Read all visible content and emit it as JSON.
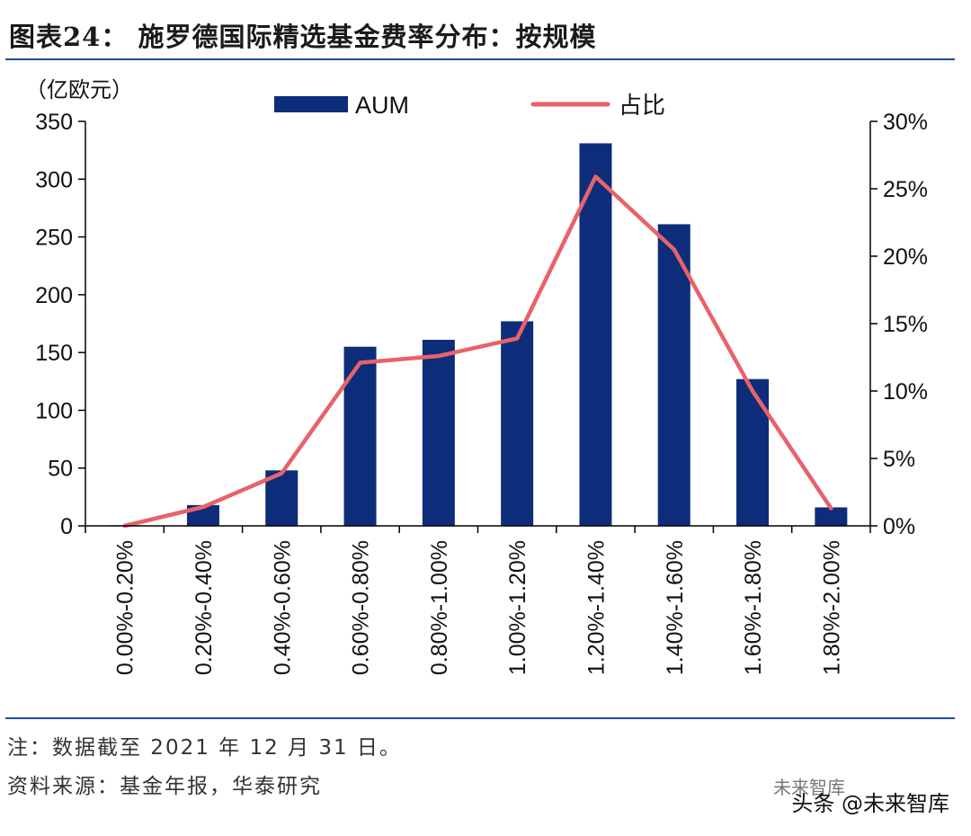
{
  "title": "图表24： 施罗德国际精选基金费率分布：按规模",
  "notes": {
    "note": "注：数据截至 2021 年 12 月 31 日。",
    "source": "资料来源：基金年报，华泰研究"
  },
  "watermark": {
    "text": "头条 @未来智库",
    "logo": "未来智库"
  },
  "colors": {
    "bar": "#0d2d7a",
    "line": "#e8626a",
    "rule": "#1f4e9c"
  },
  "chart_data": {
    "type": "bar",
    "title": "施罗德国际精选基金费率分布：按规模",
    "categories": [
      "0.00%-0.20%",
      "0.20%-0.40%",
      "0.40%-0.60%",
      "0.60%-0.80%",
      "0.80%-1.00%",
      "1.00%-1.20%",
      "1.20%-1.40%",
      "1.40%-1.60%",
      "1.60%-1.80%",
      "1.80%-2.00%"
    ],
    "series": [
      {
        "name": "AUM",
        "type": "bar",
        "axis": "left",
        "values": [
          0.5,
          18,
          48,
          155,
          161,
          177,
          331,
          261,
          127,
          16
        ]
      },
      {
        "name": "占比",
        "type": "line",
        "axis": "right",
        "values": [
          0.0,
          1.4,
          3.9,
          12.1,
          12.6,
          13.9,
          25.9,
          20.5,
          10.0,
          1.3
        ]
      }
    ],
    "ylabel_left": "（亿欧元）",
    "ylim_left": [
      0,
      350
    ],
    "yticks_left": [
      "0",
      "50",
      "100",
      "150",
      "200",
      "250",
      "300",
      "350"
    ],
    "ylim_right": [
      0,
      30
    ],
    "yticks_right": [
      "0%",
      "5%",
      "10%",
      "15%",
      "20%",
      "25%",
      "30%"
    ],
    "legend": [
      "AUM",
      "占比"
    ],
    "legend_position": "top-center"
  }
}
